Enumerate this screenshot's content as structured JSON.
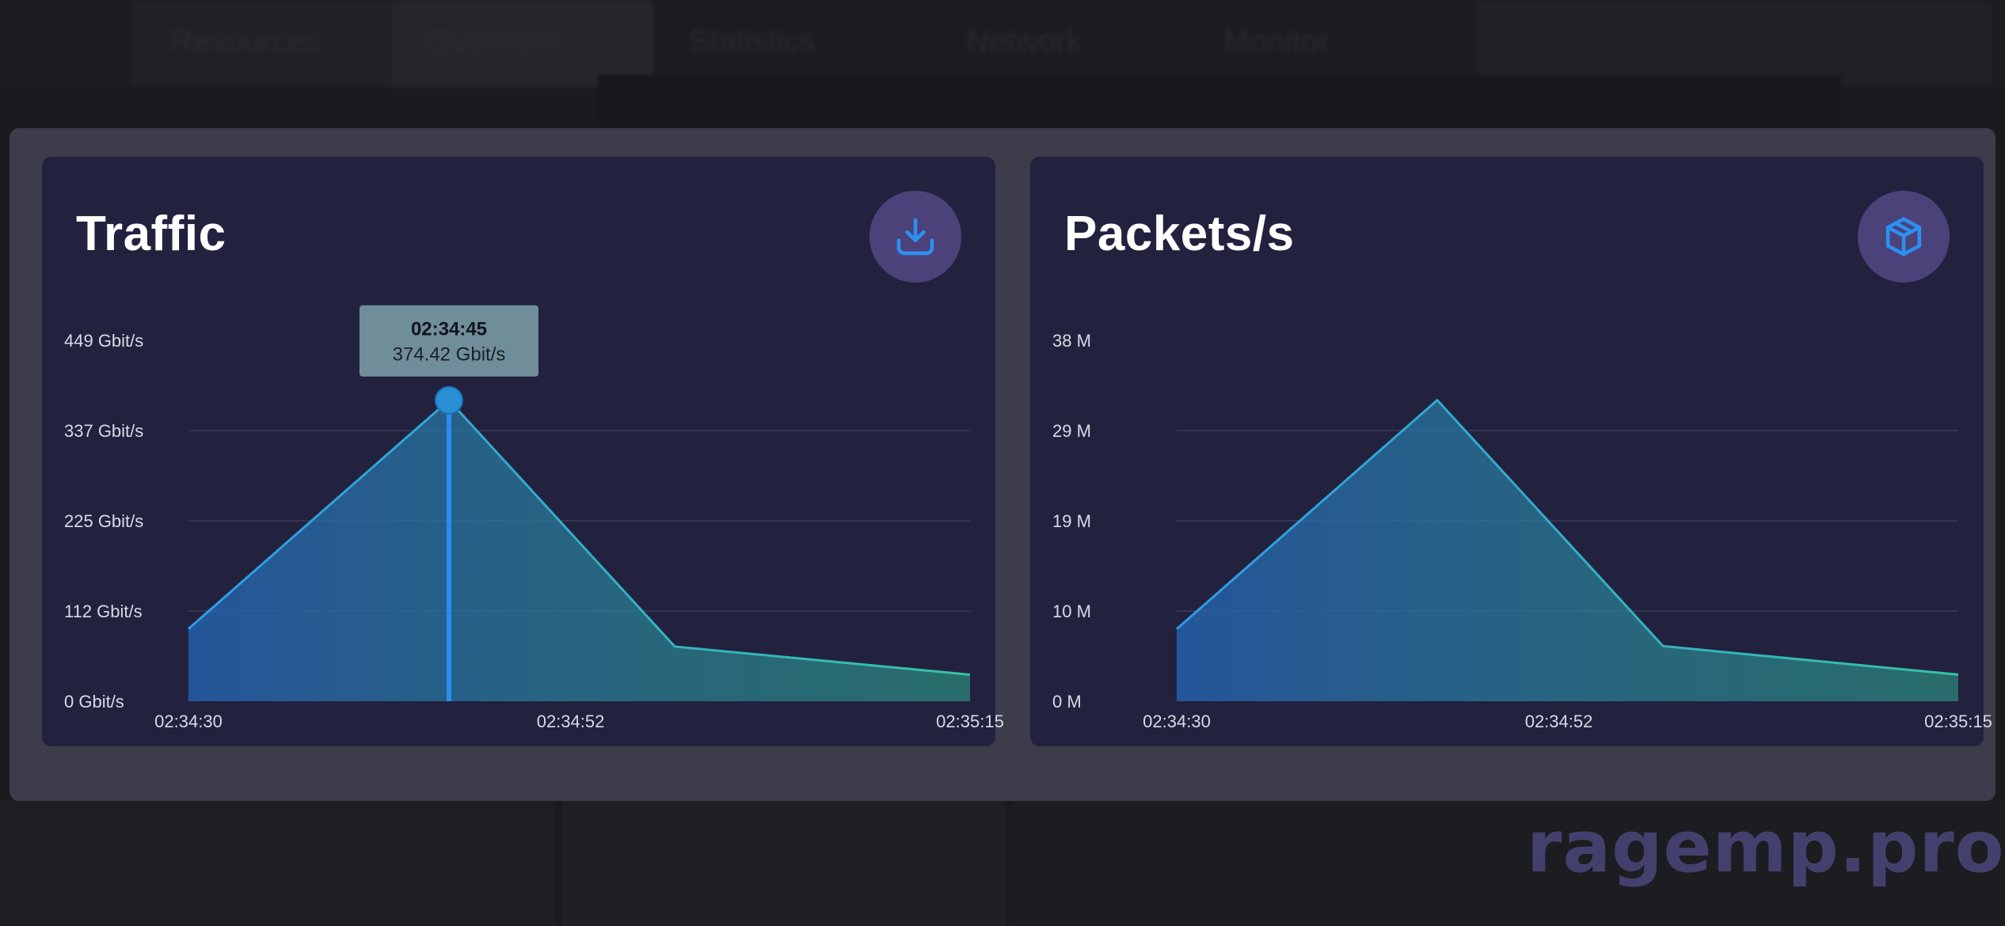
{
  "background": {
    "nav_tabs": [
      "Resources",
      "Overview",
      "Statistics",
      "Network",
      "Monitor"
    ]
  },
  "panels": {
    "traffic": {
      "title": "Traffic",
      "icon": "download-icon",
      "tooltip": {
        "time": "02:34:45",
        "value": "374.42 Gbit/s"
      }
    },
    "packets": {
      "title": "Packets/s",
      "icon": "box-icon"
    }
  },
  "watermark": "ragemp.pro",
  "colors": {
    "overlay": "#3d3c4b",
    "card": "#22223f",
    "icon_bg": "#4a4279",
    "line_start": "#2f9be6",
    "line_end": "#36c2a6",
    "cursor": "#2b8df0"
  },
  "chart_data": [
    {
      "type": "area",
      "title": "Traffic",
      "x_ticks": [
        "02:34:30",
        "02:34:52",
        "02:35:15"
      ],
      "y_ticks": [
        "0 Gbit/s",
        "112 Gbit/s",
        "225 Gbit/s",
        "337 Gbit/s",
        "449 Gbit/s"
      ],
      "ylim": [
        0,
        449
      ],
      "grid": true,
      "x": [
        "02:34:30",
        "02:34:45",
        "02:34:58",
        "02:35:15"
      ],
      "values": [
        90,
        374.42,
        68,
        33
      ],
      "highlight": {
        "x": "02:34:45",
        "value": 374.42
      }
    },
    {
      "type": "area",
      "title": "Packets/s",
      "x_ticks": [
        "02:34:30",
        "02:34:52",
        "02:35:15"
      ],
      "y_ticks": [
        "0 M",
        "10 M",
        "19 M",
        "29 M",
        "38 M"
      ],
      "ylim": [
        0,
        38
      ],
      "grid": true,
      "x": [
        "02:34:30",
        "02:34:45",
        "02:34:58",
        "02:35:15"
      ],
      "values": [
        7.6,
        31.7,
        5.8,
        2.8
      ]
    }
  ]
}
